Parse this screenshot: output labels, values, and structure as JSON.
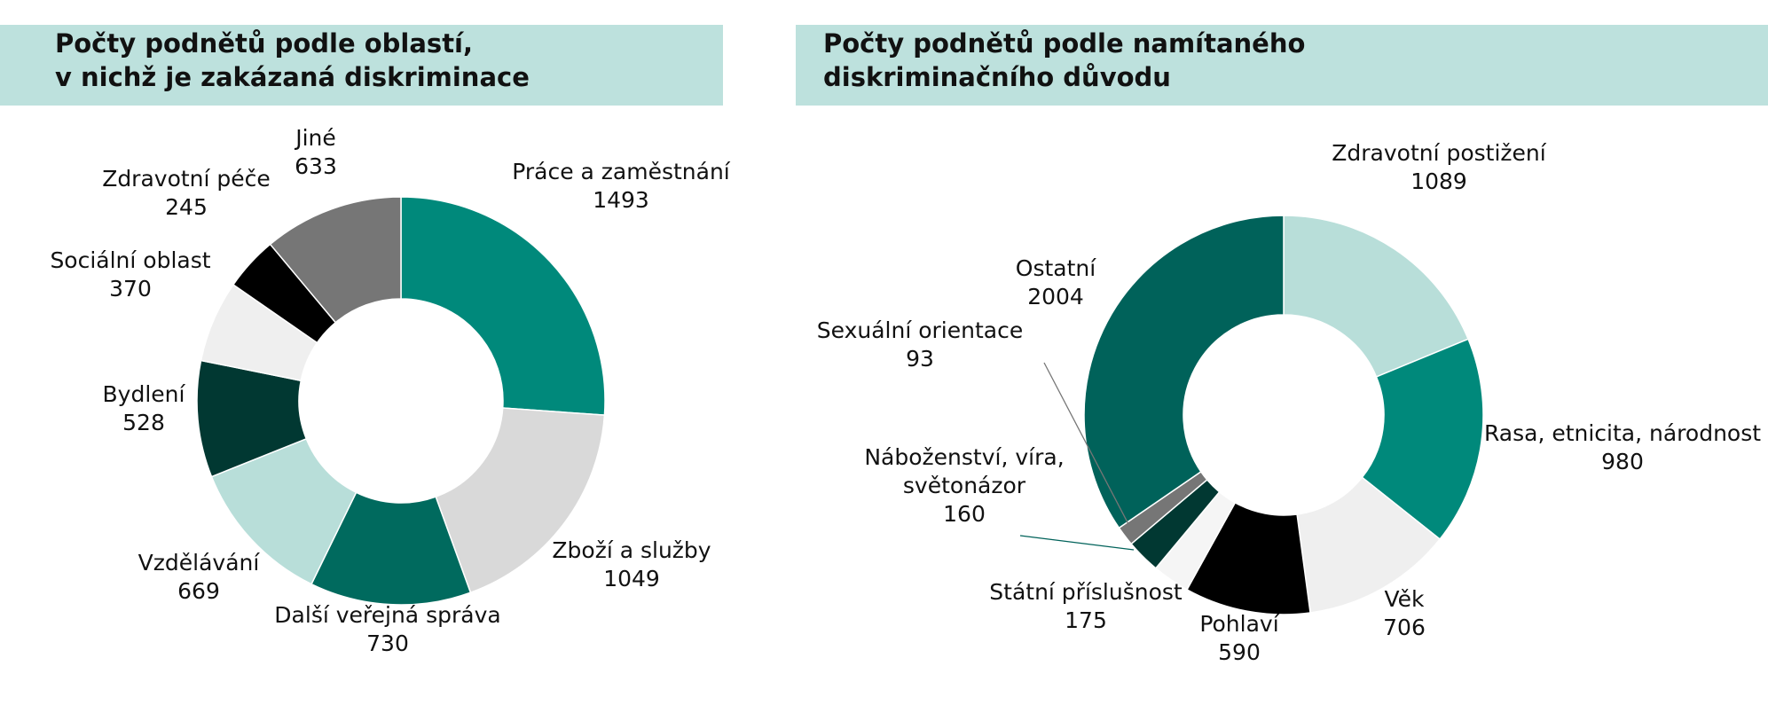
{
  "chart_data": [
    {
      "type": "pie",
      "title": [
        "Počty podnětů podle oblastí,",
        "v nichž je zakázaná diskriminace"
      ],
      "categories": [
        "Práce a zaměstnání",
        "Zboží a služby",
        "Další veřejná správa",
        "Vzdělávání",
        "Bydlení",
        "Sociální oblast",
        "Zdravotní péče",
        "Jiné"
      ],
      "values": [
        1493,
        1049,
        730,
        669,
        528,
        370,
        245,
        633
      ],
      "value_labels": [
        "1493",
        "1049",
        "730",
        "669",
        "528",
        "370",
        "245",
        "633"
      ],
      "colors": [
        "#00897b",
        "#d9d9d9",
        "#006a5e",
        "#b8ded9",
        "#013832",
        "#efefef",
        "#000000",
        "#767676"
      ],
      "donut": true,
      "start": "12 o'clock",
      "direction": "clockwise",
      "legend": "none"
    },
    {
      "type": "pie",
      "title": [
        "Počty podnětů podle namítaného",
        "diskriminačního důvodu"
      ],
      "categories": [
        "Zdravotní postižení",
        "Rasa, etnicita, národnost",
        "Věk",
        "Pohlaví",
        "Státní příslušnost",
        "Náboženství, víra,|světonázor",
        "Sexuální orientace",
        "Ostatní"
      ],
      "values": [
        1089,
        980,
        706,
        590,
        175,
        160,
        93,
        2004
      ],
      "value_labels": [
        "1089",
        "980",
        "706",
        "590",
        "175",
        "160",
        "93",
        "2004"
      ],
      "colors": [
        "#b8ded9",
        "#00897b",
        "#efefef",
        "#000000",
        "#f5f5f5",
        "#013832",
        "#767676",
        "#00625a"
      ],
      "donut": true,
      "start": "12 o'clock",
      "direction": "clockwise",
      "legend": "none"
    }
  ]
}
